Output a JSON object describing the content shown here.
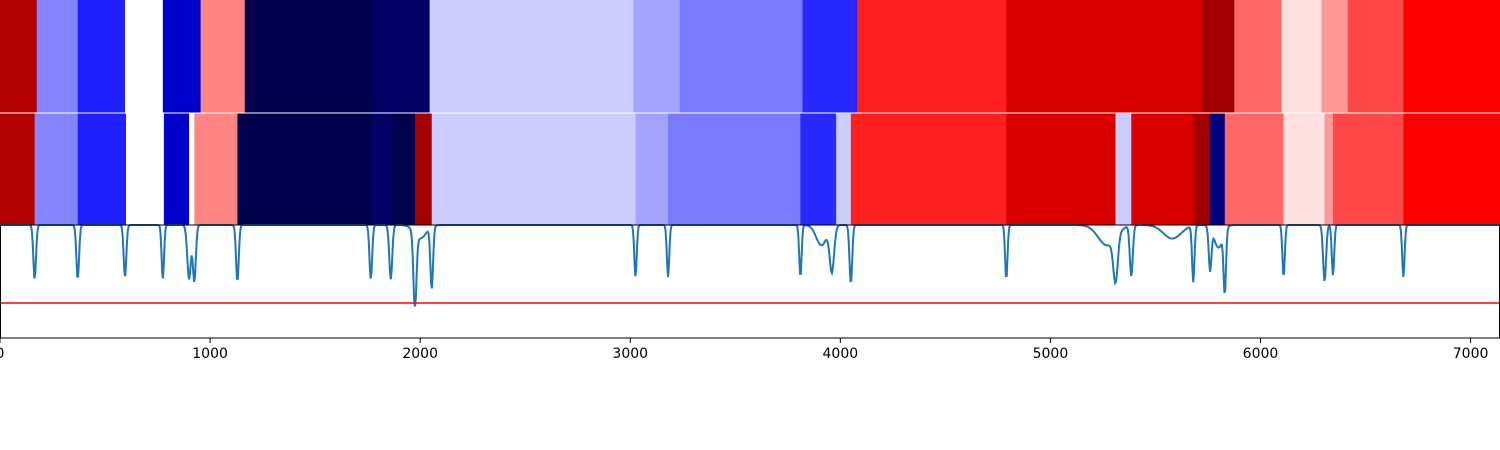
{
  "chart_data": {
    "type": "heatmap",
    "title": "",
    "xlabel": "",
    "ylabel": "",
    "xlim": [
      0,
      7140
    ],
    "colormap": "seismic",
    "colors": {
      "line": "#1f77b4",
      "threshold": "#ff0000",
      "axes": "#000000"
    },
    "x_ticks": [
      0,
      1000,
      2000,
      3000,
      4000,
      5000,
      6000,
      7000
    ],
    "x_tick_labels": [
      "0",
      "1000",
      "2000",
      "3000",
      "4000",
      "5000",
      "6000",
      "7000"
    ],
    "rows": [
      {
        "segments": [
          {
            "start": 0,
            "end": 175,
            "value": 0.8
          },
          {
            "start": 175,
            "end": 370,
            "value": -0.24
          },
          {
            "start": 370,
            "end": 595,
            "value": -0.44
          },
          {
            "start": 595,
            "end": 775,
            "value": 0.0
          },
          {
            "start": 775,
            "end": 955,
            "value": -0.64
          },
          {
            "start": 955,
            "end": 1165,
            "value": 0.24
          },
          {
            "start": 1165,
            "end": 1775,
            "value": -1.0
          },
          {
            "start": 1775,
            "end": 2045,
            "value": -0.93
          },
          {
            "start": 2045,
            "end": 3015,
            "value": -0.1
          },
          {
            "start": 3015,
            "end": 3235,
            "value": -0.18
          },
          {
            "start": 3235,
            "end": 3820,
            "value": -0.26
          },
          {
            "start": 3820,
            "end": 4080,
            "value": -0.42
          },
          {
            "start": 4080,
            "end": 4790,
            "value": 0.44
          },
          {
            "start": 4790,
            "end": 5720,
            "value": 0.64
          },
          {
            "start": 5720,
            "end": 5875,
            "value": 0.86
          },
          {
            "start": 5875,
            "end": 6100,
            "value": 0.3
          },
          {
            "start": 6100,
            "end": 6290,
            "value": 0.06
          },
          {
            "start": 6290,
            "end": 6415,
            "value": 0.2
          },
          {
            "start": 6415,
            "end": 6680,
            "value": 0.36
          },
          {
            "start": 6680,
            "end": 7140,
            "value": 0.5
          }
        ]
      },
      {
        "segments": [
          {
            "start": 0,
            "end": 165,
            "value": 0.8
          },
          {
            "start": 165,
            "end": 370,
            "value": -0.24
          },
          {
            "start": 370,
            "end": 600,
            "value": -0.44
          },
          {
            "start": 600,
            "end": 780,
            "value": 0.0
          },
          {
            "start": 780,
            "end": 900,
            "value": -0.64
          },
          {
            "start": 900,
            "end": 925,
            "value": 0.0
          },
          {
            "start": 925,
            "end": 1130,
            "value": 0.24
          },
          {
            "start": 1130,
            "end": 1765,
            "value": -1.0
          },
          {
            "start": 1765,
            "end": 1860,
            "value": -0.93
          },
          {
            "start": 1860,
            "end": 1975,
            "value": -1.0
          },
          {
            "start": 1975,
            "end": 2055,
            "value": 0.86
          },
          {
            "start": 2055,
            "end": 3025,
            "value": -0.1
          },
          {
            "start": 3025,
            "end": 3180,
            "value": -0.18
          },
          {
            "start": 3180,
            "end": 3810,
            "value": -0.26
          },
          {
            "start": 3810,
            "end": 3980,
            "value": -0.42
          },
          {
            "start": 3980,
            "end": 4050,
            "value": -0.1
          },
          {
            "start": 4050,
            "end": 4790,
            "value": 0.44
          },
          {
            "start": 4790,
            "end": 5310,
            "value": 0.64
          },
          {
            "start": 5310,
            "end": 5385,
            "value": -0.1
          },
          {
            "start": 5385,
            "end": 5680,
            "value": 0.64
          },
          {
            "start": 5680,
            "end": 5760,
            "value": 0.86
          },
          {
            "start": 5760,
            "end": 5830,
            "value": -0.86
          },
          {
            "start": 5830,
            "end": 6110,
            "value": 0.3
          },
          {
            "start": 6110,
            "end": 6305,
            "value": 0.06
          },
          {
            "start": 6305,
            "end": 6345,
            "value": 0.2
          },
          {
            "start": 6345,
            "end": 6680,
            "value": 0.36
          },
          {
            "start": 6680,
            "end": 7140,
            "value": 0.5
          }
        ]
      }
    ],
    "signal": {
      "ylim": [
        1.0,
        0.0
      ],
      "threshold": 0.69,
      "baseline": 0.0,
      "dips": [
        {
          "x": 165,
          "depth": 0.48,
          "width": 9
        },
        {
          "x": 370,
          "depth": 0.48,
          "width": 9
        },
        {
          "x": 595,
          "depth": 0.46,
          "width": 9
        },
        {
          "x": 775,
          "depth": 0.48,
          "width": 8
        },
        {
          "x": 900,
          "depth": 0.48,
          "width": 12
        },
        {
          "x": 925,
          "depth": 0.5,
          "width": 10
        },
        {
          "x": 1130,
          "depth": 0.5,
          "width": 9
        },
        {
          "x": 1765,
          "depth": 0.48,
          "width": 9
        },
        {
          "x": 1860,
          "depth": 0.48,
          "width": 10
        },
        {
          "x": 1975,
          "depth": 0.68,
          "width": 10
        },
        {
          "x": 2000,
          "depth": 0.12,
          "width": 40
        },
        {
          "x": 2055,
          "depth": 0.55,
          "width": 9
        },
        {
          "x": 3025,
          "depth": 0.46,
          "width": 8
        },
        {
          "x": 3180,
          "depth": 0.46,
          "width": 8
        },
        {
          "x": 3810,
          "depth": 0.46,
          "width": 8
        },
        {
          "x": 3910,
          "depth": 0.18,
          "width": 35
        },
        {
          "x": 3960,
          "depth": 0.4,
          "width": 15
        },
        {
          "x": 4050,
          "depth": 0.52,
          "width": 9
        },
        {
          "x": 4790,
          "depth": 0.48,
          "width": 8
        },
        {
          "x": 5270,
          "depth": 0.18,
          "width": 60
        },
        {
          "x": 5310,
          "depth": 0.4,
          "width": 15
        },
        {
          "x": 5385,
          "depth": 0.45,
          "width": 10
        },
        {
          "x": 5580,
          "depth": 0.12,
          "width": 60
        },
        {
          "x": 5680,
          "depth": 0.5,
          "width": 8
        },
        {
          "x": 5760,
          "depth": 0.38,
          "width": 9
        },
        {
          "x": 5830,
          "depth": 0.55,
          "width": 8
        },
        {
          "x": 5800,
          "depth": 0.2,
          "width": 30
        },
        {
          "x": 6110,
          "depth": 0.46,
          "width": 8
        },
        {
          "x": 6305,
          "depth": 0.5,
          "width": 10
        },
        {
          "x": 6345,
          "depth": 0.45,
          "width": 8
        },
        {
          "x": 6680,
          "depth": 0.46,
          "width": 8
        }
      ]
    }
  }
}
